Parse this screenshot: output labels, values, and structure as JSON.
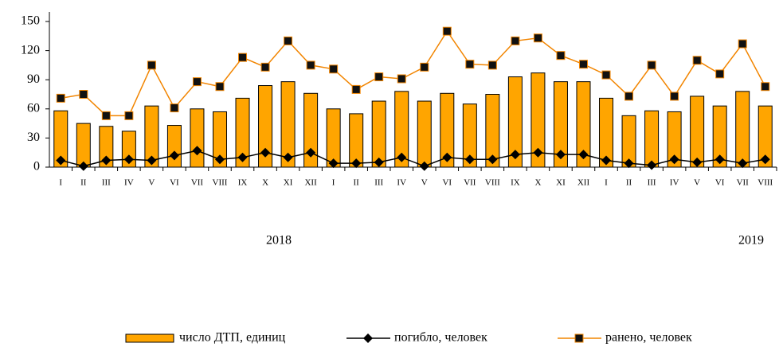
{
  "chart_data": {
    "type": "bar",
    "categories": [
      "I",
      "II",
      "III",
      "IV",
      "V",
      "VI",
      "VII",
      "VIII",
      "IX",
      "X",
      "XI",
      "XII",
      "I",
      "II",
      "III",
      "IV",
      "V",
      "VI",
      "VII",
      "VIII",
      "IX",
      "X",
      "XI",
      "XII",
      "I",
      "II",
      "III",
      "IV",
      "V",
      "VI",
      "VII",
      "VIII"
    ],
    "series": [
      {
        "name": "число ДТП, единиц",
        "type": "bar",
        "color": "#ffa500",
        "values": [
          58,
          45,
          42,
          37,
          63,
          43,
          60,
          57,
          71,
          84,
          88,
          76,
          60,
          55,
          68,
          78,
          68,
          76,
          65,
          75,
          93,
          97,
          88,
          88,
          71,
          53,
          58,
          57,
          73,
          63,
          78,
          63
        ]
      },
      {
        "name": "погибло, человек",
        "type": "line",
        "color": "#000000",
        "marker": "diamond",
        "values": [
          7,
          1,
          7,
          8,
          7,
          12,
          17,
          8,
          10,
          15,
          10,
          15,
          4,
          4,
          5,
          10,
          1,
          10,
          8,
          8,
          13,
          15,
          13,
          13,
          7,
          4,
          2,
          8,
          5,
          8,
          4,
          8
        ]
      },
      {
        "name": "ранено, человек",
        "type": "line",
        "color": "#f28500",
        "marker": "square",
        "values": [
          71,
          75,
          53,
          53,
          105,
          61,
          88,
          83,
          113,
          103,
          130,
          105,
          101,
          80,
          93,
          91,
          103,
          140,
          106,
          105,
          130,
          133,
          115,
          106,
          95,
          73,
          105,
          73,
          110,
          96,
          127,
          83
        ]
      }
    ],
    "annotations": [
      "2018",
      "2019"
    ],
    "ylim": [
      0,
      150
    ],
    "yticks": [
      0,
      30,
      60,
      90,
      120,
      150
    ],
    "grid": false,
    "legend": "bottom"
  }
}
